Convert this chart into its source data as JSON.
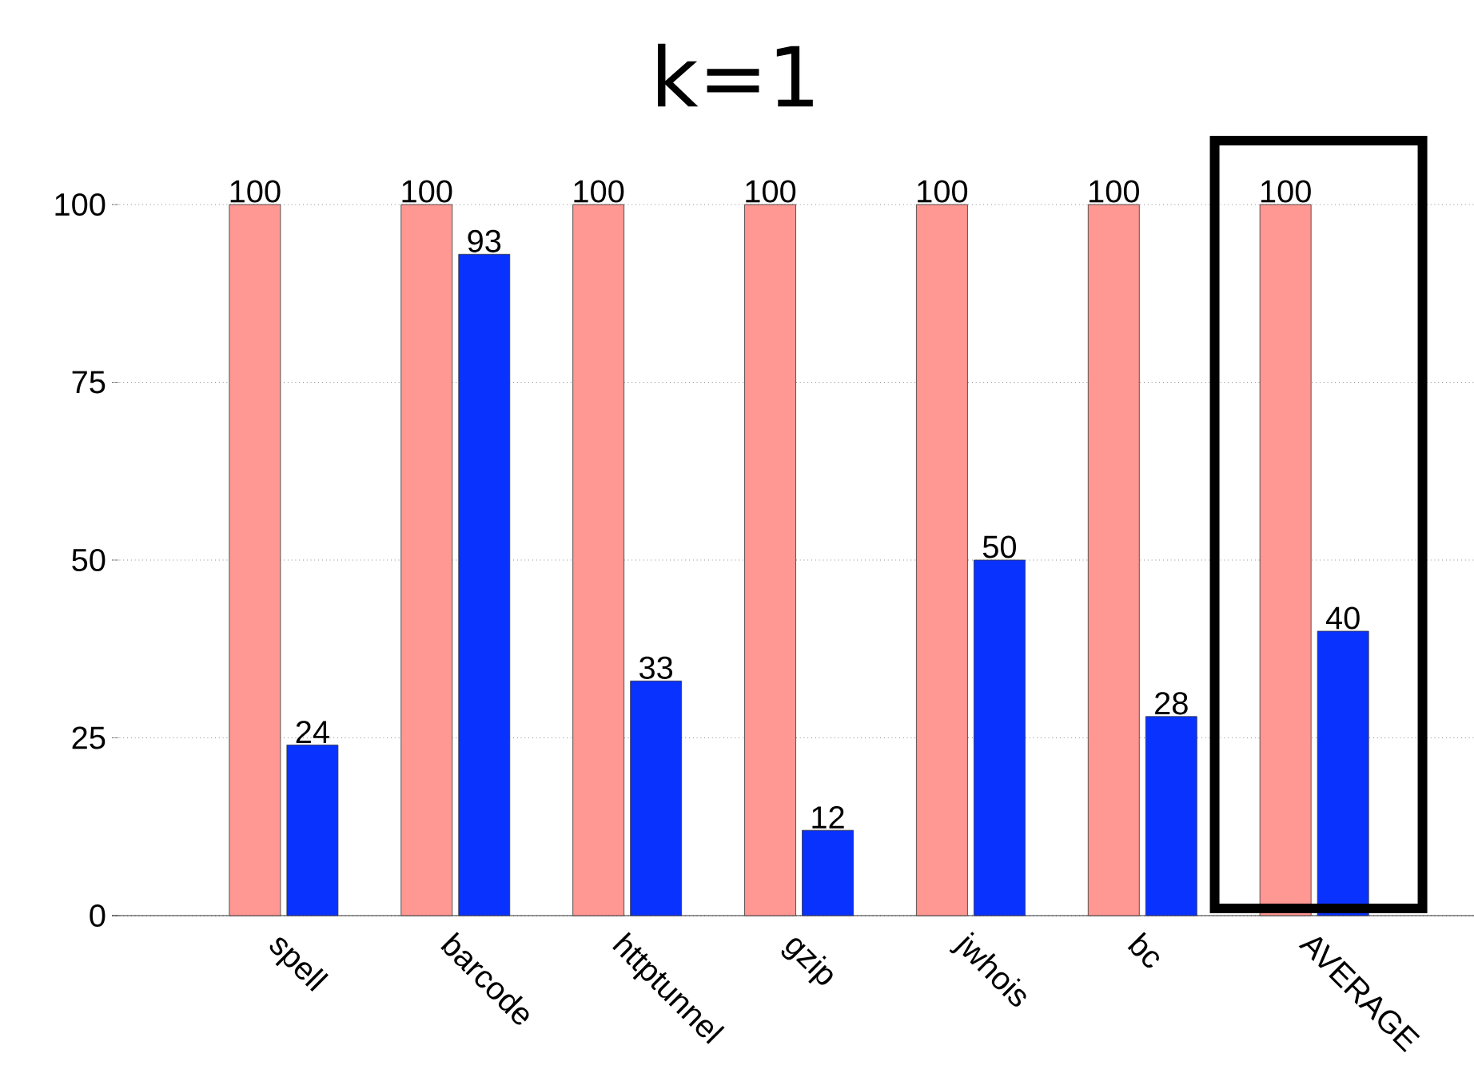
{
  "chart_data": {
    "type": "bar",
    "title": "k=1",
    "categories": [
      "spell",
      "barcode",
      "httptunnel",
      "gzip",
      "jwhois",
      "bc",
      "AVERAGE"
    ],
    "series": [
      {
        "color": "#ff9793",
        "values": [
          100,
          100,
          100,
          100,
          100,
          100,
          100
        ]
      },
      {
        "color": "#0a32ff",
        "values": [
          24,
          93,
          33,
          12,
          50,
          28,
          40
        ]
      }
    ],
    "ylim": [
      0,
      100
    ],
    "yticks": [
      0,
      25,
      50,
      75,
      100
    ],
    "grid": "y",
    "data_labels": true
  }
}
